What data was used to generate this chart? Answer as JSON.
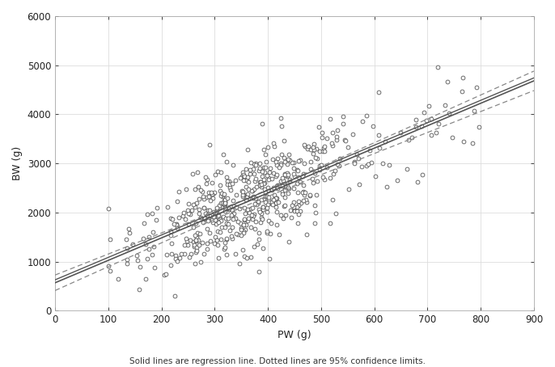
{
  "title": "",
  "xlabel": "PW (g)",
  "ylabel": "BW (g)",
  "caption": "Solid lines are regression line. Dotted lines are 95% confidence limits.",
  "xlim": [
    0,
    900
  ],
  "ylim": [
    0,
    6000
  ],
  "xticks": [
    0,
    100,
    200,
    300,
    400,
    500,
    600,
    700,
    800,
    900
  ],
  "yticks": [
    0,
    1000,
    2000,
    3000,
    4000,
    5000,
    6000
  ],
  "regression_intercept": 569.63,
  "regression_slope": 4.57,
  "n_points": 600,
  "seed": 12,
  "scatter_color": "white",
  "scatter_edgecolor": "#555555",
  "scatter_size": 12,
  "line_color": "#555555",
  "ci_color": "#888888",
  "background_color": "#ffffff",
  "grid_color": "#dddddd",
  "figsize": [
    6.86,
    4.54
  ],
  "dpi": 100
}
